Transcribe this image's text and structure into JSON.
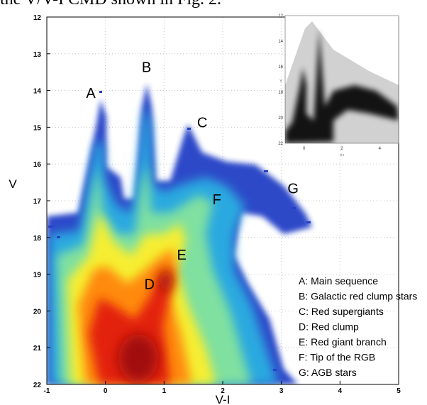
{
  "caption_fragment": "the V/V-I CMD shown in Fig. 2.",
  "chart_data": {
    "type": "heatmap",
    "xlabel": "V-I",
    "ylabel": "V",
    "xlim": [
      -1,
      5
    ],
    "ylim": [
      22,
      12
    ],
    "y_inverted": true,
    "xticks": [
      "-1",
      "0",
      "1",
      "2",
      "3",
      "4",
      "5"
    ],
    "yticks": [
      "12",
      "13",
      "14",
      "15",
      "16",
      "17",
      "18",
      "19",
      "20",
      "21",
      "22"
    ],
    "grid": true,
    "colormap": [
      "#ffffff",
      "#1f3fc8",
      "#2aa9e0",
      "#7fe0a0",
      "#f6ee30",
      "#ff8a10",
      "#e32010",
      "#a01010"
    ],
    "features": [
      {
        "letter": "A",
        "x": -0.25,
        "y": 14.2
      },
      {
        "letter": "B",
        "x": 0.7,
        "y": 13.5
      },
      {
        "letter": "C",
        "x": 1.65,
        "y": 15.0
      },
      {
        "letter": "D",
        "x": 0.75,
        "y": 19.4
      },
      {
        "letter": "E",
        "x": 1.3,
        "y": 18.6
      },
      {
        "letter": "F",
        "x": 1.9,
        "y": 17.1
      },
      {
        "letter": "G",
        "x": 3.2,
        "y": 16.8
      }
    ],
    "legend": [
      "A: Main sequence",
      "B: Galactic red clump stars",
      "C: Red supergiants",
      "D: Red clump",
      "E: Red giant branch",
      "F: Tip of the RGB",
      "G: AGB stars"
    ],
    "inset": {
      "type": "scatter",
      "xlabel": "V-I",
      "ylabel": "V",
      "xlim": [
        -1,
        5
      ],
      "ylim": [
        22,
        12
      ],
      "xticks": [
        "0",
        "2",
        "4"
      ],
      "yticks": [
        "12",
        "14",
        "16",
        "18",
        "20",
        "22"
      ]
    }
  }
}
